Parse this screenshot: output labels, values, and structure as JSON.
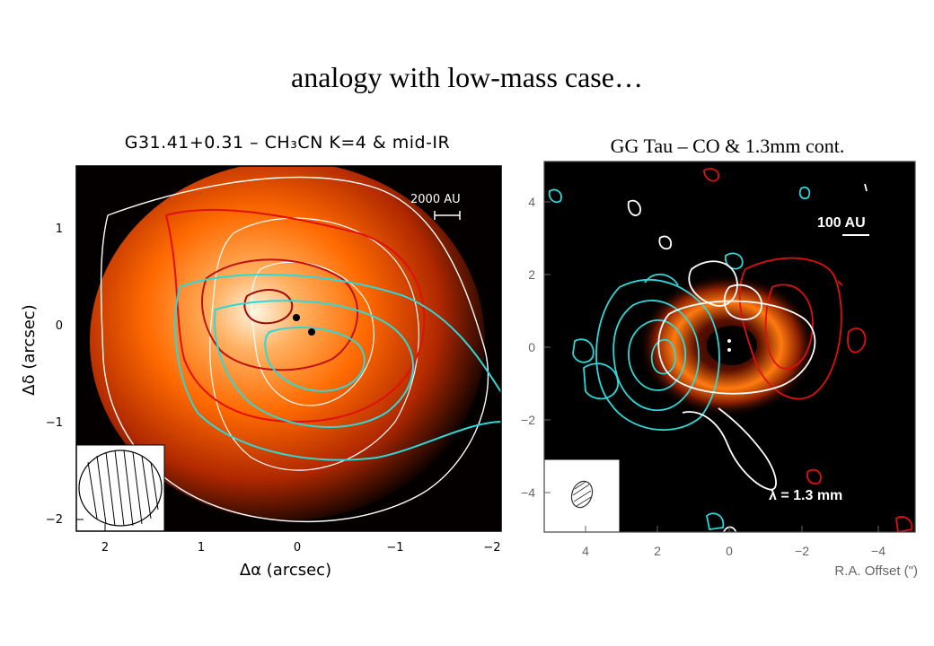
{
  "slide": {
    "title": "analogy with low-mass case…"
  },
  "left_panel": {
    "title": "G31.41+0.31 – CH₃CN K=4 & mid-IR",
    "scale_label": "2000 AU",
    "x_label": "Δα (arcsec)",
    "y_label": "Δδ (arcsec)",
    "x_ticks": [
      "2",
      "1",
      "0",
      "−1",
      "−2"
    ],
    "y_ticks": [
      "1",
      "0",
      "−1",
      "−2"
    ],
    "colors": {
      "background": "#050000",
      "emission": "#ff6a00",
      "contour_white": "#ffffff",
      "contour_red": "#e01010",
      "contour_cyan": "#2fd8d8"
    }
  },
  "right_panel": {
    "title": "GG Tau – CO & 1.3mm cont.",
    "scale_label": "100 AU",
    "wavelength_label": "λ = 1.3 mm",
    "x_label": "R.A. Offset (\")",
    "x_ticks": [
      "4",
      "2",
      "0",
      "−2",
      "−4"
    ],
    "y_ticks": [
      "4",
      "2",
      "0",
      "−2",
      "−4"
    ],
    "colors": {
      "background": "#000000",
      "ring": "#ff7a10",
      "contour_white": "#ffffff",
      "contour_red": "#e01010",
      "contour_cyan": "#2fd8d8"
    }
  }
}
